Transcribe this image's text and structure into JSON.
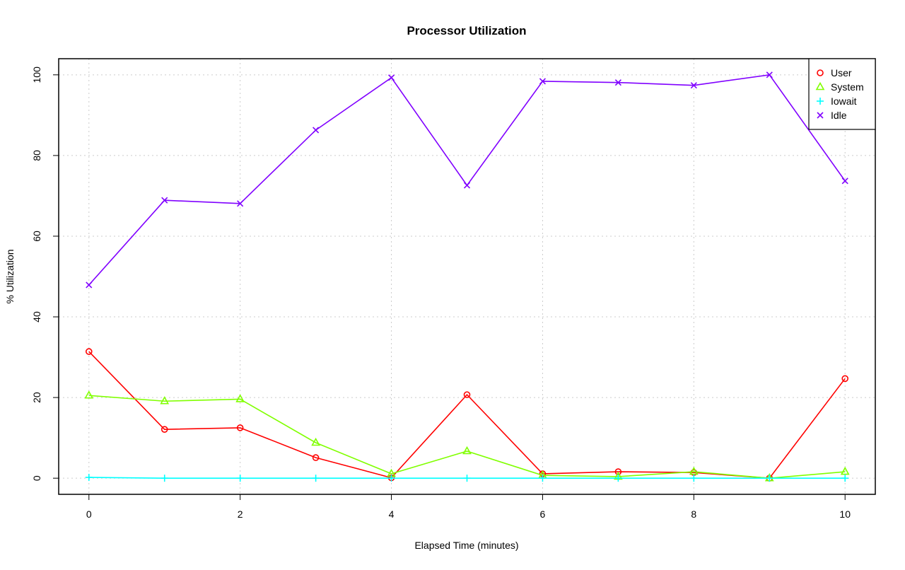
{
  "chart_data": {
    "type": "line",
    "title": "Processor Utilization",
    "xlabel": "Elapsed Time (minutes)",
    "ylabel": "% Utilization",
    "x": [
      0,
      1,
      2,
      3,
      4,
      5,
      6,
      7,
      8,
      9,
      10
    ],
    "xlim": [
      -0.4,
      10.4
    ],
    "ylim": [
      -4,
      104
    ],
    "xticks": [
      0,
      2,
      4,
      6,
      8,
      10
    ],
    "yticks": [
      0,
      20,
      40,
      60,
      80,
      100
    ],
    "grid": true,
    "legend_position": "top-right",
    "series": [
      {
        "name": "User",
        "color": "#FF0000",
        "marker": "circle",
        "values": [
          31.4,
          12.1,
          12.5,
          5.1,
          0.1,
          20.7,
          1.1,
          1.6,
          1.4,
          0.0,
          24.7
        ]
      },
      {
        "name": "System",
        "color": "#80FF00",
        "marker": "triangle",
        "values": [
          20.5,
          19.1,
          19.6,
          8.8,
          1.1,
          6.7,
          0.7,
          0.4,
          1.6,
          0.0,
          1.6
        ]
      },
      {
        "name": "Iowait",
        "color": "#00FFFF",
        "marker": "plus",
        "values": [
          0.2,
          0,
          0,
          0,
          0,
          0,
          0,
          0,
          0,
          0,
          0
        ]
      },
      {
        "name": "Idle",
        "color": "#8000FF",
        "marker": "cross",
        "values": [
          47.9,
          68.9,
          68.1,
          86.3,
          99.3,
          72.6,
          98.4,
          98.1,
          97.4,
          100.0,
          73.7
        ]
      }
    ]
  }
}
